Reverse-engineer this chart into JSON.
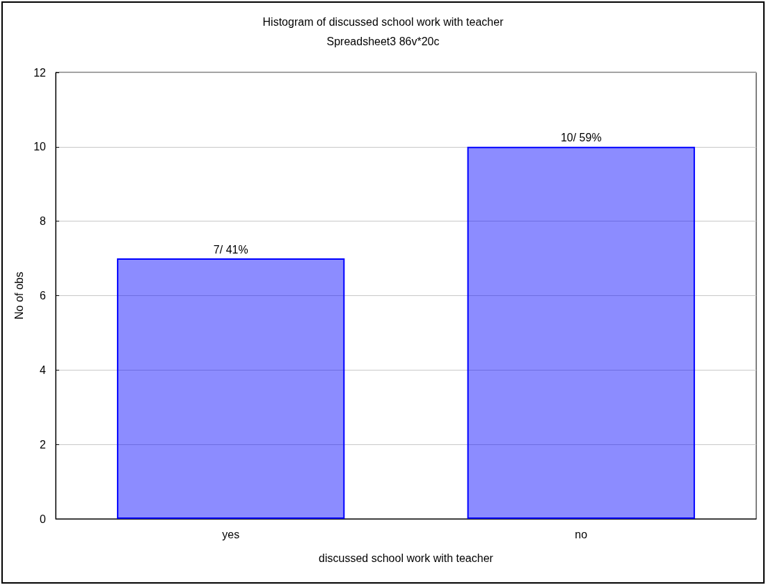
{
  "chart_data": {
    "type": "bar",
    "title": "Histogram of discussed school work with teacher",
    "subtitle": "Spreadsheet3 86v*20c",
    "xlabel": "discussed school work with teacher",
    "ylabel": "No of obs",
    "categories": [
      "yes",
      "no"
    ],
    "values": [
      7,
      10
    ],
    "value_labels": [
      "7/ 41%",
      "10/ 59%"
    ],
    "color": "#0000ff",
    "ylim": [
      0,
      12
    ],
    "yticks": [
      0,
      2,
      4,
      6,
      8,
      10,
      12
    ],
    "grid": "y"
  }
}
